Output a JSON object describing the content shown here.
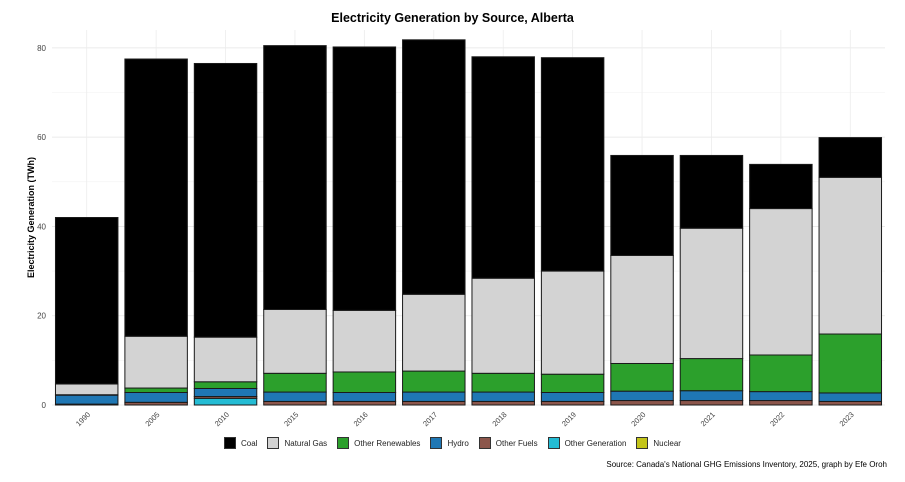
{
  "chart_data": {
    "type": "bar",
    "stacked": true,
    "title": "Electricity Generation by Source, Alberta",
    "xlabel": "",
    "ylabel": "Electricity Generation (TWh)",
    "ylim": [
      0,
      84
    ],
    "yticks": [
      0,
      20,
      40,
      60,
      80
    ],
    "grid": true,
    "legend_position": "bottom",
    "caption": "Source: Canada's National GHG Emissions Inventory, 2025, graph by Efe Oroh",
    "categories": [
      "1990",
      "2005",
      "2010",
      "2015",
      "2016",
      "2017",
      "2018",
      "2019",
      "2020",
      "2021",
      "2022",
      "2023"
    ],
    "series": [
      {
        "name": "Nuclear",
        "color": "#c3c41a",
        "values": [
          0,
          0,
          0,
          0,
          0,
          0,
          0,
          0,
          0,
          0,
          0,
          0
        ]
      },
      {
        "name": "Other Generation",
        "color": "#24bcd4",
        "values": [
          0,
          0,
          1.5,
          0,
          0,
          0,
          0,
          0,
          0,
          0,
          0,
          0
        ]
      },
      {
        "name": "Other Fuels",
        "color": "#8c564b",
        "values": [
          0.2,
          0.6,
          0.4,
          0.8,
          0.8,
          0.8,
          0.8,
          0.8,
          1.0,
          1.0,
          1.0,
          0.8
        ]
      },
      {
        "name": "Hydro",
        "color": "#1f77b4",
        "values": [
          2.0,
          2.2,
          1.8,
          2.1,
          2.0,
          2.1,
          2.1,
          2.0,
          2.1,
          2.2,
          2.0,
          1.9
        ]
      },
      {
        "name": "Other Renewables",
        "color": "#2ca02c",
        "values": [
          0.1,
          1.0,
          1.5,
          4.2,
          4.6,
          4.7,
          4.2,
          4.1,
          6.2,
          7.2,
          8.2,
          13.2
        ]
      },
      {
        "name": "Natural Gas",
        "color": "#d3d3d3",
        "values": [
          2.4,
          11.6,
          10.0,
          14.3,
          13.8,
          17.2,
          21.3,
          23.1,
          24.2,
          29.2,
          32.8,
          35.1
        ]
      },
      {
        "name": "Coal",
        "color": "#000000",
        "values": [
          37.3,
          62.1,
          61.3,
          59.1,
          59.0,
          57.0,
          49.6,
          47.8,
          22.4,
          16.3,
          9.9,
          8.9
        ]
      }
    ],
    "legend_order": [
      "Coal",
      "Natural Gas",
      "Other Renewables",
      "Hydro",
      "Other Fuels",
      "Other Generation",
      "Nuclear"
    ]
  }
}
